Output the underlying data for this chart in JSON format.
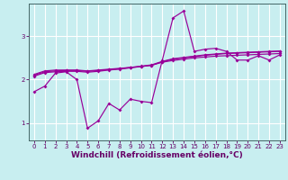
{
  "background_color": "#c8eef0",
  "grid_color": "#ffffff",
  "line_color": "#990099",
  "xlabel": "Windchill (Refroidissement éolien,°C)",
  "xlim": [
    -0.5,
    23.5
  ],
  "ylim": [
    0.6,
    3.75
  ],
  "yticks": [
    1,
    2,
    3
  ],
  "xticks": [
    0,
    1,
    2,
    3,
    4,
    5,
    6,
    7,
    8,
    9,
    10,
    11,
    12,
    13,
    14,
    15,
    16,
    17,
    18,
    19,
    20,
    21,
    22,
    23
  ],
  "line1_x": [
    0,
    1,
    2,
    3,
    4,
    5,
    6,
    7,
    8,
    9,
    10,
    11,
    12,
    13,
    14,
    15,
    16,
    17,
    18,
    19,
    20,
    21,
    22,
    23
  ],
  "line1_y": [
    1.72,
    1.85,
    2.15,
    2.18,
    2.0,
    0.88,
    1.05,
    1.45,
    1.3,
    1.55,
    1.5,
    1.47,
    2.45,
    3.42,
    3.58,
    2.65,
    2.7,
    2.72,
    2.65,
    2.45,
    2.45,
    2.55,
    2.45,
    2.57
  ],
  "line2_x": [
    0,
    1,
    2,
    3,
    4,
    5,
    6,
    7,
    8,
    9,
    10,
    11,
    12,
    13,
    14,
    15,
    16,
    17,
    18,
    19,
    20,
    21,
    22,
    23
  ],
  "line2_y": [
    2.12,
    2.2,
    2.22,
    2.22,
    2.22,
    2.2,
    2.22,
    2.24,
    2.26,
    2.28,
    2.3,
    2.33,
    2.4,
    2.44,
    2.47,
    2.5,
    2.52,
    2.54,
    2.55,
    2.56,
    2.57,
    2.58,
    2.59,
    2.6
  ],
  "line3_x": [
    0,
    1,
    2,
    3,
    4,
    5,
    6,
    7,
    8,
    9,
    10,
    11,
    12,
    13,
    14,
    15,
    16,
    17,
    18,
    19,
    20,
    21,
    22,
    23
  ],
  "line3_y": [
    2.08,
    2.16,
    2.18,
    2.19,
    2.19,
    2.17,
    2.19,
    2.22,
    2.24,
    2.27,
    2.3,
    2.33,
    2.41,
    2.47,
    2.5,
    2.53,
    2.56,
    2.58,
    2.6,
    2.61,
    2.62,
    2.63,
    2.64,
    2.65
  ],
  "line4_x": [
    0,
    1,
    2,
    3,
    4,
    5,
    6,
    7,
    8,
    9,
    10,
    11,
    12,
    13,
    14,
    15,
    16,
    17,
    18,
    19,
    20,
    21,
    22,
    23
  ],
  "line4_y": [
    2.1,
    2.18,
    2.2,
    2.21,
    2.21,
    2.19,
    2.21,
    2.23,
    2.25,
    2.28,
    2.31,
    2.34,
    2.42,
    2.48,
    2.51,
    2.54,
    2.57,
    2.59,
    2.61,
    2.62,
    2.63,
    2.64,
    2.65,
    2.66
  ],
  "tick_fontsize": 5.0,
  "label_fontsize": 6.5,
  "tick_color": "#660066",
  "label_color": "#660066"
}
